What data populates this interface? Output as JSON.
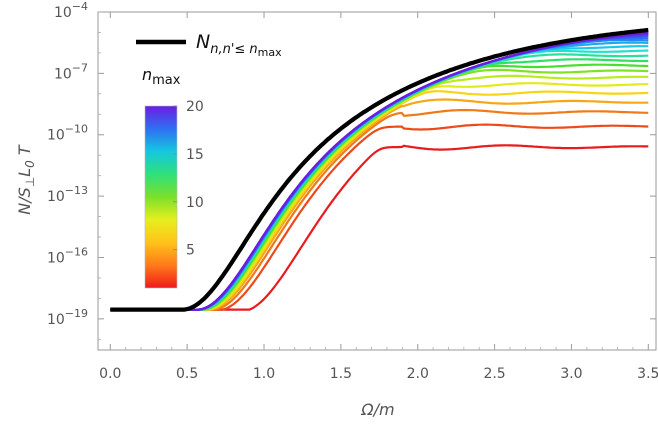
{
  "chart_data": {
    "type": "line",
    "title": "",
    "xlabel": "Ω/m",
    "ylabel": "N/S⊥L0T",
    "x_scale": "linear",
    "y_scale": "log",
    "xlim": [
      -0.08,
      3.55
    ],
    "ylim": [
      3e-21,
      0.0001
    ],
    "x_ticks": [
      "0.0",
      "0.5",
      "1.0",
      "1.5",
      "2.0",
      "2.5",
      "3.0",
      "3.5"
    ],
    "y_ticks": [
      {
        "base": "10",
        "exp": "−4"
      },
      {
        "base": "10",
        "exp": "−7"
      },
      {
        "base": "10",
        "exp": "−10"
      },
      {
        "base": "10",
        "exp": "−13"
      },
      {
        "base": "10",
        "exp": "−16"
      },
      {
        "base": "10",
        "exp": "−19"
      }
    ],
    "legend": {
      "placement": "top-left",
      "label_main": "N",
      "label_sub": "n,n'≤ n",
      "label_subsub": "max",
      "color": "#000000"
    },
    "colorbar": {
      "title_main": "n",
      "title_sub": "max",
      "ticks": [
        "20",
        "15",
        "10",
        "5"
      ],
      "range": [
        1,
        20
      ],
      "colors": [
        "#6a1de0",
        "#2f6ff2",
        "#15c7e0",
        "#2fe07a",
        "#7ae02b",
        "#e6ef1e",
        "#ffc21a",
        "#ff7a1a",
        "#f01a1a"
      ]
    },
    "series": [
      {
        "nmax": 1,
        "color": "#e81c1c",
        "plateau_log10": -10.6
      },
      {
        "nmax": 2,
        "color": "#ec4a1a",
        "plateau_log10": -9.6
      },
      {
        "nmax": 3,
        "color": "#f07a18",
        "plateau_log10": -8.9
      },
      {
        "nmax": 4,
        "color": "#f6a617",
        "plateau_log10": -8.4
      },
      {
        "nmax": 5,
        "color": "#f7d418",
        "plateau_log10": -7.95
      },
      {
        "nmax": 6,
        "color": "#e2ea1b",
        "plateau_log10": -7.55
      },
      {
        "nmax": 7,
        "color": "#b9ec1f",
        "plateau_log10": -7.2
      },
      {
        "nmax": 8,
        "color": "#7fe323",
        "plateau_log10": -6.9
      },
      {
        "nmax": 9,
        "color": "#47df2d",
        "plateau_log10": -6.62
      },
      {
        "nmax": 10,
        "color": "#2fe065",
        "plateau_log10": -6.36
      },
      {
        "nmax": 11,
        "color": "#28e09d",
        "plateau_log10": -6.12
      },
      {
        "nmax": 12,
        "color": "#22e0cf",
        "plateau_log10": -5.9
      },
      {
        "nmax": 13,
        "color": "#1dc8e6",
        "plateau_log10": -5.7
      },
      {
        "nmax": 14,
        "color": "#1ea9ea",
        "plateau_log10": -5.52
      },
      {
        "nmax": 15,
        "color": "#218bee",
        "plateau_log10": -5.36
      },
      {
        "nmax": 16,
        "color": "#2f6ff2",
        "plateau_log10": -5.22
      },
      {
        "nmax": 17,
        "color": "#3f55ee",
        "plateau_log10": -5.1
      },
      {
        "nmax": 18,
        "color": "#513fe9",
        "plateau_log10": -5.0
      },
      {
        "nmax": 19,
        "color": "#5f2ee5",
        "plateau_log10": -4.92
      },
      {
        "nmax": 20,
        "color": "#6a1de0",
        "plateau_log10": -4.86
      }
    ],
    "total_series": {
      "color": "#000000",
      "baseline_log10": -18.55,
      "end_log10": -4.35
    }
  }
}
